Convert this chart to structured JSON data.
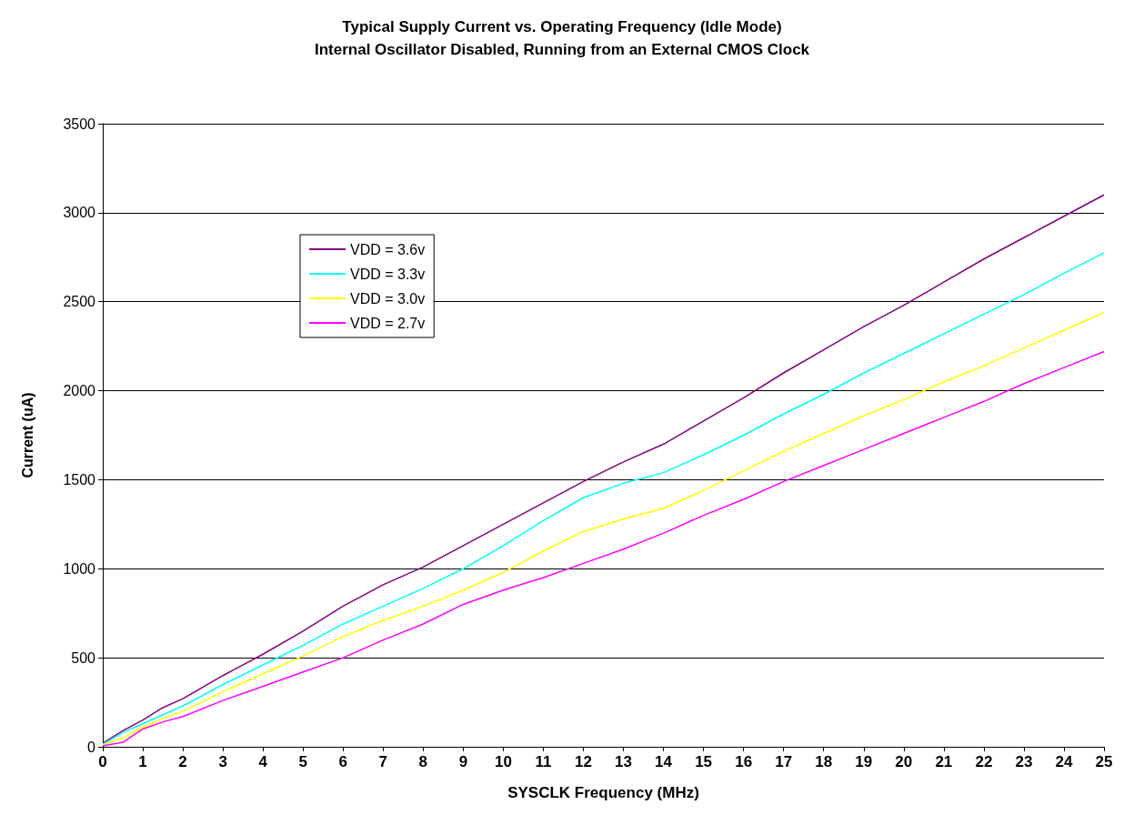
{
  "chart_data": {
    "type": "line",
    "title": "Typical Supply Current vs. Operating Frequency (Idle Mode)",
    "subtitle": "Internal Oscillator Disabled, Running from an External CMOS Clock",
    "xlabel": "SYSCLK Frequency (MHz)",
    "ylabel": "Current (uA)",
    "x": [
      0,
      0.5,
      1,
      1.5,
      2,
      3,
      4,
      5,
      6,
      7,
      8,
      9,
      10,
      11,
      12,
      13,
      14,
      15,
      16,
      17,
      18,
      19,
      20,
      21,
      22,
      23,
      24,
      25
    ],
    "series": [
      {
        "name": "VDD = 3.6v",
        "color": "#800080",
        "values": [
          20,
          90,
          150,
          220,
          270,
          400,
          520,
          650,
          790,
          910,
          1010,
          1130,
          1250,
          1370,
          1490,
          1600,
          1700,
          1830,
          1960,
          2100,
          2230,
          2360,
          2480,
          2610,
          2740,
          2860,
          2980,
          3100
        ]
      },
      {
        "name": "VDD = 3.3v",
        "color": "#00ffff",
        "values": [
          15,
          80,
          130,
          180,
          230,
          350,
          460,
          570,
          690,
          790,
          890,
          1000,
          1130,
          1270,
          1400,
          1480,
          1540,
          1640,
          1750,
          1870,
          1980,
          2100,
          2210,
          2320,
          2430,
          2540,
          2660,
          2775
        ]
      },
      {
        "name": "VDD = 3.0v",
        "color": "#ffff00",
        "values": [
          10,
          50,
          110,
          160,
          200,
          310,
          410,
          510,
          620,
          710,
          790,
          880,
          980,
          1100,
          1210,
          1280,
          1340,
          1440,
          1550,
          1660,
          1760,
          1860,
          1950,
          2050,
          2140,
          2240,
          2340,
          2440
        ]
      },
      {
        "name": "VDD = 2.7v",
        "color": "#ff00ff",
        "values": [
          5,
          25,
          100,
          140,
          170,
          260,
          340,
          420,
          500,
          600,
          690,
          800,
          880,
          950,
          1030,
          1110,
          1200,
          1300,
          1390,
          1490,
          1580,
          1670,
          1760,
          1850,
          1940,
          2040,
          2130,
          2220
        ]
      }
    ],
    "xlim": [
      0,
      25
    ],
    "xticks": [
      0,
      1,
      2,
      3,
      4,
      5,
      6,
      7,
      8,
      9,
      10,
      11,
      12,
      13,
      14,
      15,
      16,
      17,
      18,
      19,
      20,
      21,
      22,
      23,
      24,
      25
    ],
    "ylim": [
      0,
      3500
    ],
    "yticks": [
      0,
      500,
      1000,
      1500,
      2000,
      2500,
      3000,
      3500
    ],
    "grid": "y",
    "legend": "top left",
    "marker": "none",
    "line_style": "solid"
  }
}
